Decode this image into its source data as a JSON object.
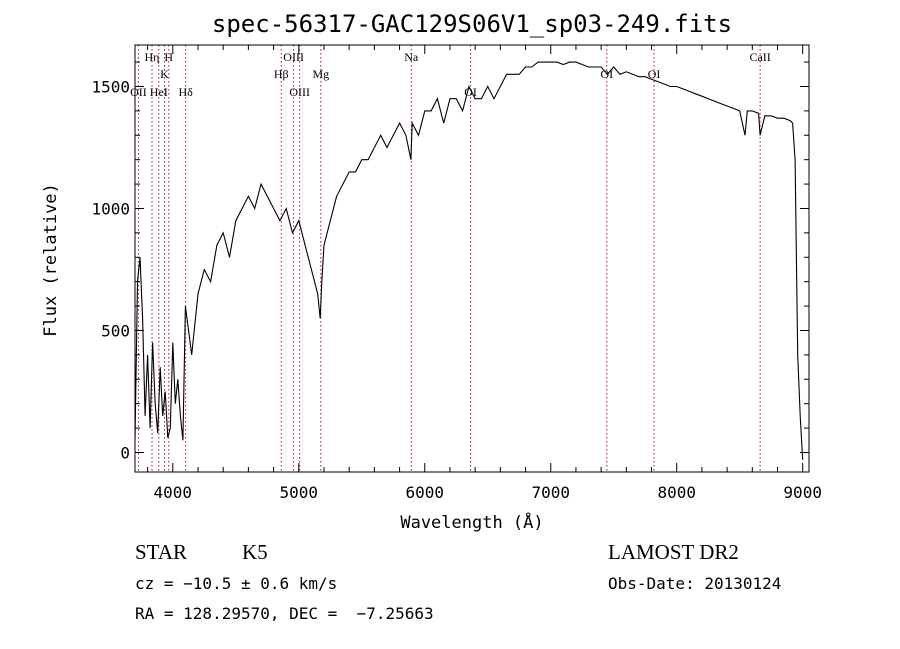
{
  "chart_data": {
    "type": "line",
    "title": "spec-56317-GAC129S06V1_sp03-249.fits",
    "xlabel": "Wavelength (Å)",
    "ylabel": "Flux (relative)",
    "xlim": [
      3700,
      9050
    ],
    "ylim": [
      -80,
      1670
    ],
    "xticks": [
      4000,
      5000,
      6000,
      7000,
      8000,
      9000
    ],
    "yticks": [
      0,
      500,
      1000,
      1500
    ],
    "grid": false,
    "line_color": "#000000",
    "marker_color": "#a0141e",
    "series": [
      {
        "x": [
          3700,
          3720,
          3740,
          3760,
          3780,
          3800,
          3820,
          3840,
          3860,
          3880,
          3900,
          3920,
          3940,
          3960,
          3980,
          4000,
          4020,
          4040,
          4060,
          4080,
          4100,
          4150,
          4200,
          4250,
          4300,
          4350,
          4400,
          4450,
          4500,
          4550,
          4600,
          4650,
          4700,
          4750,
          4800,
          4850,
          4900,
          4950,
          5000,
          5050,
          5100,
          5150,
          5170,
          5183,
          5200,
          5250,
          5300,
          5350,
          5400,
          5450,
          5500,
          5550,
          5600,
          5650,
          5700,
          5750,
          5800,
          5850,
          5890,
          5900,
          5950,
          6000,
          6050,
          6100,
          6150,
          6200,
          6250,
          6300,
          6350,
          6400,
          6450,
          6500,
          6550,
          6600,
          6650,
          6700,
          6750,
          6800,
          6850,
          6900,
          6950,
          7000,
          7050,
          7100,
          7150,
          7200,
          7250,
          7300,
          7350,
          7400,
          7450,
          7500,
          7550,
          7600,
          7650,
          7700,
          7750,
          7800,
          7850,
          7900,
          7950,
          8000,
          8050,
          8100,
          8150,
          8200,
          8250,
          8300,
          8350,
          8400,
          8450,
          8500,
          8542,
          8560,
          8600,
          8650,
          8662,
          8700,
          8750,
          8800,
          8850,
          8900,
          8920,
          8940,
          8960,
          8980,
          9000
        ],
        "y": [
          50,
          700,
          800,
          550,
          150,
          400,
          100,
          450,
          200,
          80,
          350,
          150,
          250,
          60,
          100,
          450,
          200,
          300,
          150,
          50,
          600,
          400,
          650,
          750,
          700,
          850,
          900,
          800,
          950,
          1000,
          1050,
          1000,
          1100,
          1050,
          1000,
          950,
          1000,
          900,
          950,
          850,
          750,
          650,
          550,
          700,
          850,
          950,
          1050,
          1100,
          1150,
          1150,
          1200,
          1200,
          1250,
          1300,
          1250,
          1300,
          1350,
          1300,
          1200,
          1350,
          1300,
          1400,
          1400,
          1450,
          1350,
          1450,
          1450,
          1400,
          1500,
          1450,
          1450,
          1500,
          1450,
          1500,
          1550,
          1550,
          1550,
          1580,
          1580,
          1600,
          1600,
          1600,
          1600,
          1590,
          1600,
          1600,
          1590,
          1580,
          1580,
          1580,
          1550,
          1580,
          1550,
          1560,
          1550,
          1540,
          1540,
          1530,
          1520,
          1510,
          1500,
          1500,
          1490,
          1480,
          1470,
          1460,
          1450,
          1440,
          1430,
          1420,
          1410,
          1400,
          1300,
          1400,
          1400,
          1390,
          1300,
          1380,
          1380,
          1370,
          1370,
          1360,
          1350,
          1200,
          400,
          150,
          -30
        ]
      }
    ],
    "line_markers": [
      {
        "label": "Hη",
        "x": 3835,
        "row": 1
      },
      {
        "label": "H",
        "x": 3968,
        "row": 1
      },
      {
        "label": "K",
        "x": 3934,
        "row": 2
      },
      {
        "label": "OII",
        "x": 3727,
        "row": 3
      },
      {
        "label": "HeI",
        "x": 3889,
        "row": 3
      },
      {
        "label": "Hδ",
        "x": 4102,
        "row": 3
      },
      {
        "label": "OIII",
        "x": 4959,
        "row": 1
      },
      {
        "label": "Hβ",
        "x": 4861,
        "row": 2
      },
      {
        "label": "OIII",
        "x": 5007,
        "row": 3
      },
      {
        "label": "Mg",
        "x": 5175,
        "row": 2
      },
      {
        "label": "Na",
        "x": 5893,
        "row": 1
      },
      {
        "label": "OI",
        "x": 6364,
        "row": 3
      },
      {
        "label": "OI",
        "x": 7445,
        "row": 2
      },
      {
        "label": "OI",
        "x": 7820,
        "row": 2
      },
      {
        "label": "CaII",
        "x": 8662,
        "row": 1
      }
    ]
  },
  "info": {
    "object_class": "STAR",
    "subclass": "K5",
    "survey": "LAMOST DR2",
    "cz": "cz = −10.5 ± 0.6 km/s",
    "obs_date": "Obs-Date: 20130124",
    "coords": "RA = 128.29570, DEC =  −7.25663"
  }
}
